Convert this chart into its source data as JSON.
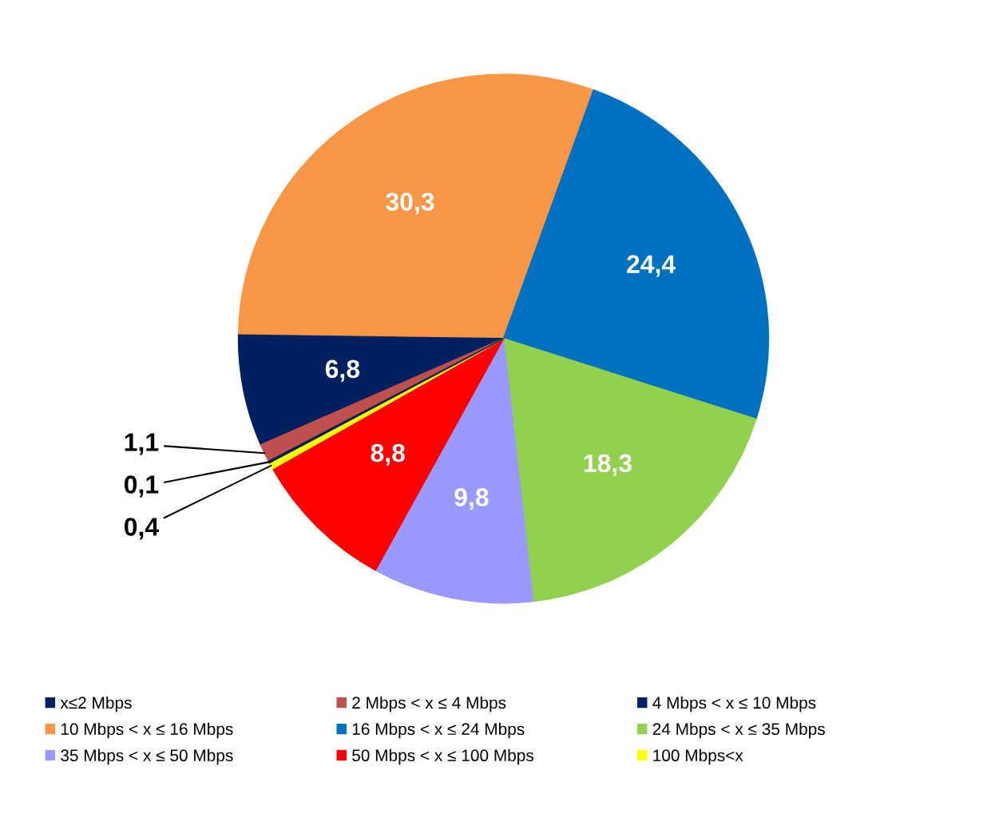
{
  "chart_data": {
    "type": "pie",
    "categories": [
      "x≤2 Mbps",
      "2 Mbps < x ≤ 4 Mbps",
      "4 Mbps < x ≤ 10 Mbps",
      "10 Mbps < x ≤ 16 Mbps",
      "16 Mbps < x ≤ 24 Mbps",
      "24 Mbps < x ≤ 35 Mbps",
      "35 Mbps < x ≤ 50 Mbps",
      "50 Mbps < x ≤ 100 Mbps",
      "100 Mbps<x"
    ],
    "values": [
      0.1,
      1.1,
      6.8,
      30.3,
      24.4,
      18.3,
      9.8,
      8.8,
      0.4
    ],
    "value_labels": [
      "0,1",
      "1,1",
      "6,8",
      "30,3",
      "24,4",
      "18,3",
      "9,8",
      "8,8",
      "0,4"
    ],
    "colors": [
      "#002060",
      "#c0504d",
      "#002060",
      "#f79646",
      "#0070c0",
      "#92d050",
      "#9999ff",
      "#ff0000",
      "#ffff00"
    ],
    "legend": "bottom"
  }
}
